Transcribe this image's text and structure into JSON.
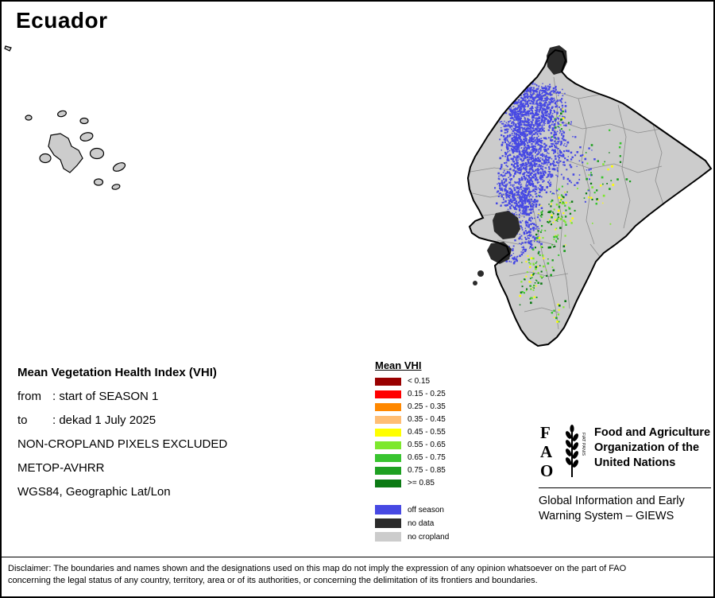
{
  "title": "Ecuador",
  "info": {
    "heading": "Mean Vegetation Health Index (VHI)",
    "rows": [
      {
        "label": "from",
        "value": ": start of SEASON 1"
      },
      {
        "label": "to",
        "value": ": dekad 1 July 2025"
      }
    ],
    "lines": [
      "NON-CROPLAND PIXELS EXCLUDED",
      "METOP-AVHRR",
      "WGS84, Geographic Lat/Lon"
    ]
  },
  "legend": {
    "heading": "Mean VHI",
    "classes": [
      {
        "label": "< 0.15",
        "color": "#990000"
      },
      {
        "label": "0.15 - 0.25",
        "color": "#ff0000"
      },
      {
        "label": "0.25 - 0.35",
        "color": "#ff8800"
      },
      {
        "label": "0.35 - 0.45",
        "color": "#ffbe75"
      },
      {
        "label": "0.45 - 0.55",
        "color": "#ffff00"
      },
      {
        "label": "0.55 - 0.65",
        "color": "#7de82d"
      },
      {
        "label": "0.65 - 0.75",
        "color": "#38c42f"
      },
      {
        "label": "0.75 - 0.85",
        "color": "#1ea021"
      },
      {
        "label": ">= 0.85",
        "color": "#0c7a14"
      }
    ],
    "extra": [
      {
        "label": "off season",
        "color": "#4749e3"
      },
      {
        "label": "no data",
        "color": "#2b2b2b"
      },
      {
        "label": "no cropland",
        "color": "#cccccc"
      }
    ]
  },
  "fao": {
    "letters": [
      "F",
      "A",
      "O"
    ],
    "motto": "FIAT PANIS",
    "name_lines": [
      "Food and Agriculture",
      "Organization of the",
      "United Nations"
    ],
    "giews_lines": [
      "Global Information and Early",
      "Warning System – GIEWS"
    ]
  },
  "disclaimer": {
    "lines": [
      "Disclaimer: The boundaries and names shown and the designations used on this map do not imply the expression of any opinion whatsoever on the part of FAO",
      "concerning the legal status of any country, territory, area or of its authorities, or concerning the delimitation of its frontiers and boundaries."
    ]
  }
}
